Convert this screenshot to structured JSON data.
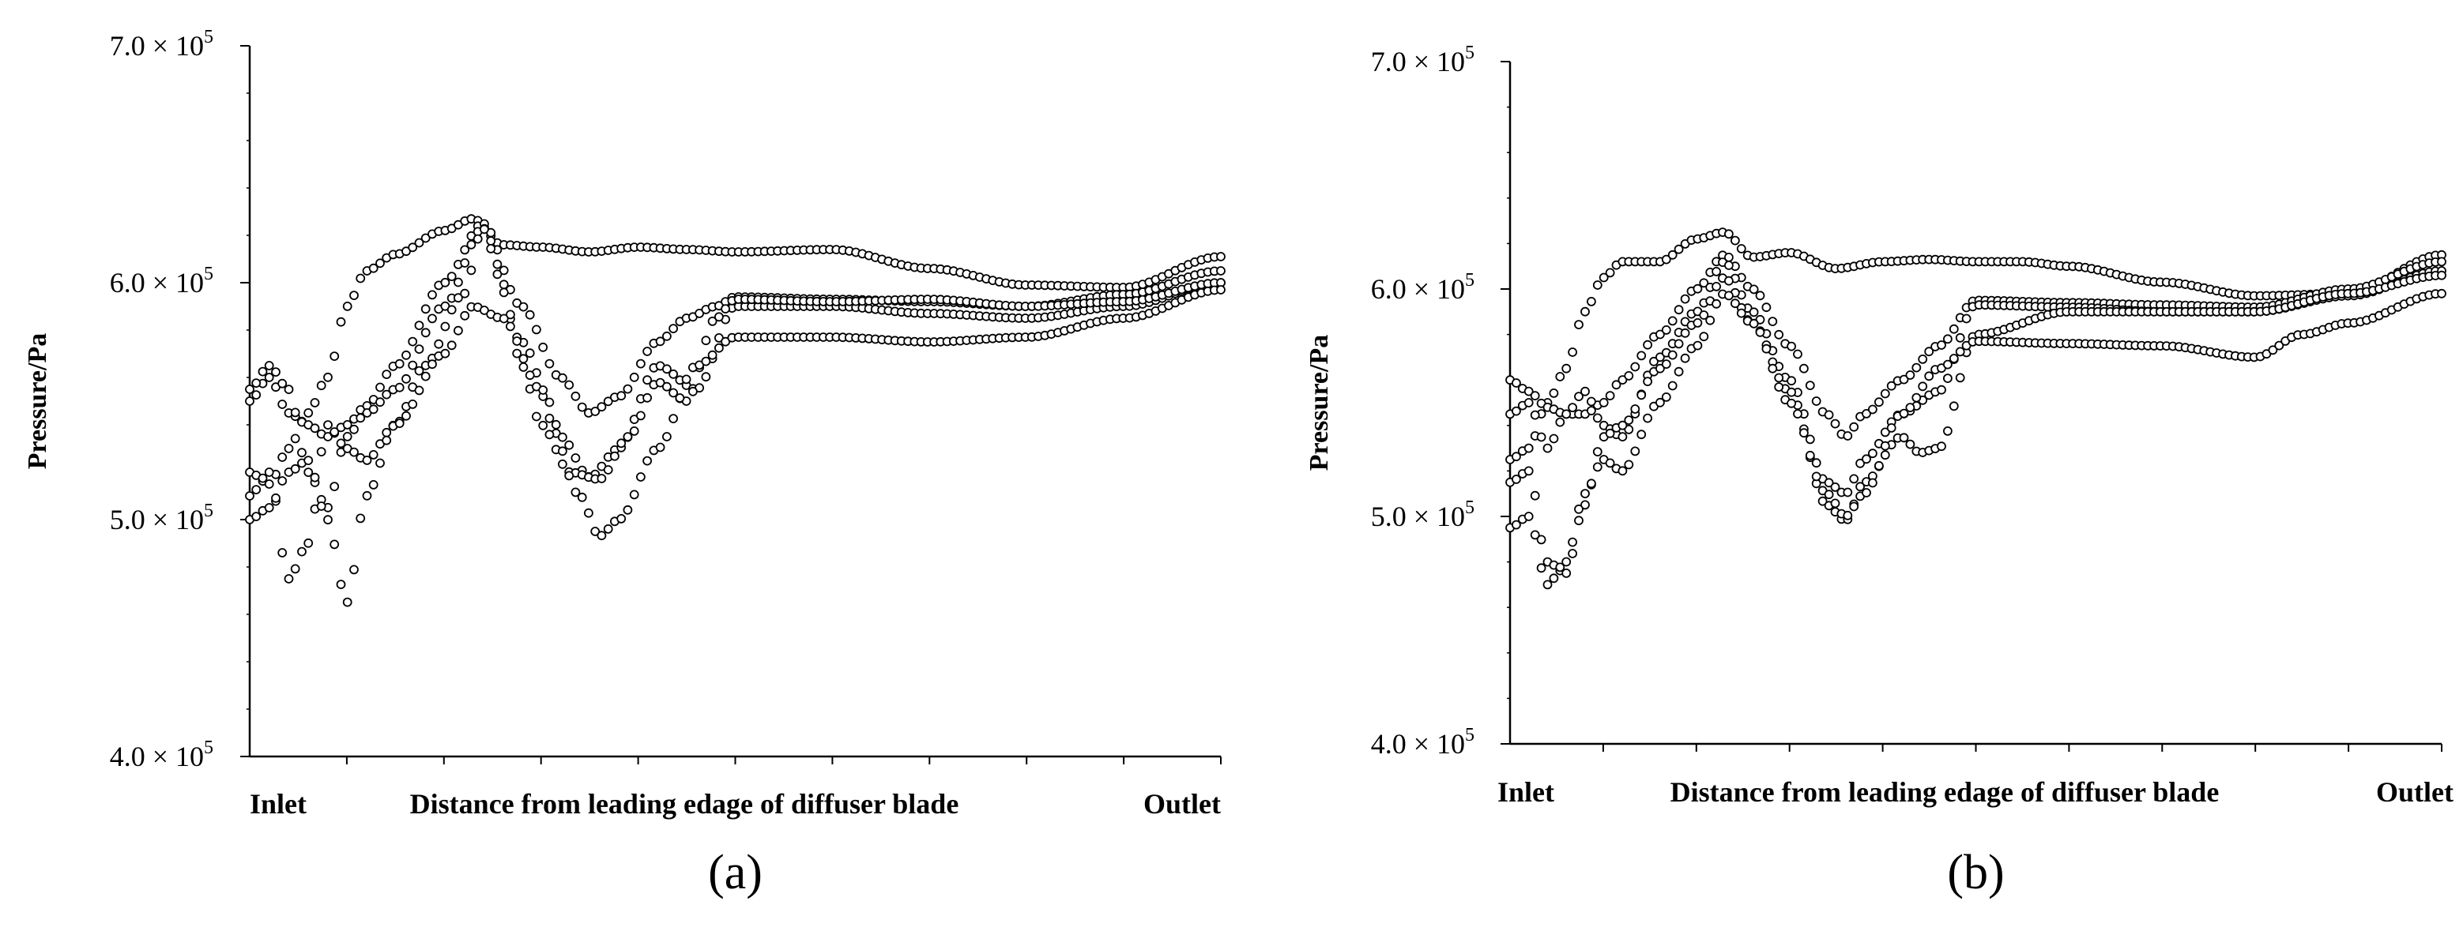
{
  "chart_data": [
    {
      "type": "scatter",
      "panel_label": "(a)",
      "ylabel": "Pressure/Pa",
      "x_labels": {
        "left": "Inlet",
        "center": "Distance from leading edage of diffuser blade",
        "right": "Outlet"
      },
      "ylim": [
        400000,
        700000
      ],
      "xlim": [
        0,
        1
      ],
      "y_ticks": [
        {
          "value": 400000,
          "label": "4.0 × 10",
          "exp": "5"
        },
        {
          "value": 500000,
          "label": "5.0 × 10",
          "exp": "5"
        },
        {
          "value": 600000,
          "label": "6.0 × 10",
          "exp": "5"
        },
        {
          "value": 700000,
          "label": "7.0 × 10",
          "exp": "5"
        }
      ],
      "y_minor_step": 20000,
      "x_minor_count": 10,
      "grid": false,
      "marker": "open-circle",
      "series": [
        {
          "x": [
            0,
            0.02,
            0.04,
            0.06,
            0.08,
            0.1,
            0.12,
            0.15,
            0.2,
            0.23,
            0.26,
            0.3,
            0.35,
            0.4,
            0.45,
            0.5,
            0.6,
            0.7,
            0.8,
            0.9,
            1.0
          ],
          "y": [
            520000,
            515000,
            530000,
            545000,
            560000,
            590000,
            605000,
            612000,
            622000,
            627000,
            616000,
            615000,
            613000,
            615000,
            614000,
            613000,
            614000,
            606000,
            599000,
            598000,
            611000
          ]
        },
        {
          "x": [
            0,
            0.02,
            0.04,
            0.06,
            0.08,
            0.1,
            0.12,
            0.15,
            0.2,
            0.24,
            0.28,
            0.32,
            0.35,
            0.38,
            0.42,
            0.45,
            0.48,
            0.5,
            0.6,
            0.7,
            0.8,
            0.9,
            1.0
          ],
          "y": [
            550000,
            560000,
            545000,
            540000,
            535000,
            540000,
            548000,
            565000,
            600000,
            625000,
            590000,
            560000,
            545000,
            552000,
            575000,
            585000,
            590000,
            594000,
            593000,
            592000,
            590000,
            595000,
            605000
          ]
        },
        {
          "x": [
            0,
            0.02,
            0.04,
            0.06,
            0.08,
            0.1,
            0.12,
            0.15,
            0.2,
            0.24,
            0.28,
            0.32,
            0.35,
            0.38,
            0.42,
            0.46,
            0.5,
            0.6,
            0.7,
            0.8,
            0.9,
            1.0
          ],
          "y": [
            555000,
            565000,
            555000,
            520000,
            505000,
            535000,
            545000,
            555000,
            590000,
            623000,
            575000,
            535000,
            518000,
            530000,
            565000,
            555000,
            590000,
            590000,
            587000,
            585000,
            590000,
            600000
          ]
        },
        {
          "x": [
            0,
            0.02,
            0.04,
            0.06,
            0.08,
            0.1,
            0.12,
            0.15,
            0.18,
            0.22,
            0.24,
            0.26,
            0.28,
            0.3,
            0.33,
            0.36,
            0.39,
            0.42,
            0.45,
            0.48,
            0.5,
            0.6,
            0.7,
            0.8,
            0.9,
            1.0
          ],
          "y": [
            510000,
            520000,
            475000,
            490000,
            540000,
            530000,
            525000,
            540000,
            565000,
            595000,
            623000,
            600000,
            565000,
            540000,
            520000,
            517000,
            535000,
            558000,
            550000,
            585000,
            593000,
            592000,
            593000,
            590000,
            592000,
            600000
          ]
        },
        {
          "x": [
            0,
            0.02,
            0.04,
            0.06,
            0.08,
            0.1,
            0.12,
            0.15,
            0.2,
            0.23,
            0.26,
            0.3,
            0.34,
            0.36,
            0.38,
            0.42,
            0.46,
            0.5,
            0.6,
            0.7,
            0.8,
            0.9,
            1.0
          ],
          "y": [
            500000,
            505000,
            520000,
            525000,
            500000,
            465000,
            510000,
            540000,
            570000,
            590000,
            585000,
            555000,
            510000,
            493000,
            500000,
            530000,
            565000,
            577000,
            577000,
            575000,
            577000,
            585000,
            597000
          ]
        }
      ]
    },
    {
      "type": "scatter",
      "panel_label": "(b)",
      "ylabel": "Pressure/Pa",
      "x_labels": {
        "left": "Inlet",
        "center": "Distance from leading edage of diffuser blade",
        "right": "Outlet"
      },
      "ylim": [
        400000,
        700000
      ],
      "xlim": [
        0,
        1
      ],
      "y_ticks": [
        {
          "value": 400000,
          "label": "4.0 × 10",
          "exp": "5"
        },
        {
          "value": 500000,
          "label": "5.0 × 10",
          "exp": "5"
        },
        {
          "value": 600000,
          "label": "6.0 × 10",
          "exp": "5"
        },
        {
          "value": 700000,
          "label": "7.0 × 10",
          "exp": "5"
        }
      ],
      "y_minor_step": 20000,
      "x_minor_count": 10,
      "grid": false,
      "marker": "open-circle",
      "series": [
        {
          "x": [
            0,
            0.02,
            0.04,
            0.06,
            0.08,
            0.1,
            0.12,
            0.16,
            0.2,
            0.23,
            0.26,
            0.3,
            0.35,
            0.4,
            0.45,
            0.5,
            0.55,
            0.6,
            0.7,
            0.8,
            0.9,
            1.0
          ],
          "y": [
            525000,
            530000,
            550000,
            565000,
            590000,
            605000,
            612000,
            612000,
            622000,
            625000,
            614000,
            616000,
            609000,
            612000,
            613000,
            612000,
            612000,
            610000,
            603000,
            597000,
            598000,
            615000
          ]
        },
        {
          "x": [
            0,
            0.02,
            0.04,
            0.06,
            0.08,
            0.1,
            0.12,
            0.16,
            0.2,
            0.23,
            0.26,
            0.3,
            0.34,
            0.36,
            0.38,
            0.42,
            0.46,
            0.5,
            0.6,
            0.7,
            0.8,
            0.9,
            1.0
          ],
          "y": [
            560000,
            555000,
            548000,
            545000,
            545000,
            550000,
            560000,
            580000,
            600000,
            615000,
            600000,
            575000,
            545000,
            535000,
            545000,
            560000,
            575000,
            595000,
            594000,
            593000,
            592000,
            600000,
            612000
          ]
        },
        {
          "x": [
            0,
            0.02,
            0.04,
            0.06,
            0.08,
            0.1,
            0.12,
            0.16,
            0.2,
            0.23,
            0.26,
            0.3,
            0.34,
            0.36,
            0.38,
            0.42,
            0.46,
            0.5,
            0.6,
            0.7,
            0.8,
            0.9,
            1.0
          ],
          "y": [
            545000,
            550000,
            530000,
            545000,
            555000,
            540000,
            535000,
            570000,
            590000,
            612000,
            590000,
            560000,
            515000,
            510000,
            525000,
            545000,
            555000,
            593000,
            592000,
            590000,
            590000,
            597000,
            608000
          ]
        },
        {
          "x": [
            0,
            0.02,
            0.04,
            0.06,
            0.08,
            0.1,
            0.12,
            0.16,
            0.2,
            0.23,
            0.26,
            0.3,
            0.34,
            0.36,
            0.38,
            0.42,
            0.44,
            0.46,
            0.5,
            0.6,
            0.7,
            0.8,
            0.9,
            1.0
          ],
          "y": [
            515000,
            520000,
            480000,
            475000,
            505000,
            535000,
            540000,
            565000,
            585000,
            605000,
            585000,
            555000,
            505000,
            498000,
            515000,
            535000,
            528000,
            530000,
            580000,
            590000,
            590000,
            590000,
            598000,
            606000
          ]
        },
        {
          "x": [
            0,
            0.02,
            0.04,
            0.06,
            0.08,
            0.1,
            0.12,
            0.16,
            0.2,
            0.23,
            0.26,
            0.3,
            0.34,
            0.36,
            0.38,
            0.42,
            0.46,
            0.5,
            0.6,
            0.7,
            0.8,
            0.85,
            0.9,
            1.0
          ],
          "y": [
            495000,
            500000,
            470000,
            480000,
            510000,
            525000,
            520000,
            550000,
            575000,
            598000,
            585000,
            550000,
            510000,
            500000,
            510000,
            545000,
            565000,
            577000,
            576000,
            575000,
            570000,
            580000,
            585000,
            598000
          ]
        }
      ]
    }
  ]
}
